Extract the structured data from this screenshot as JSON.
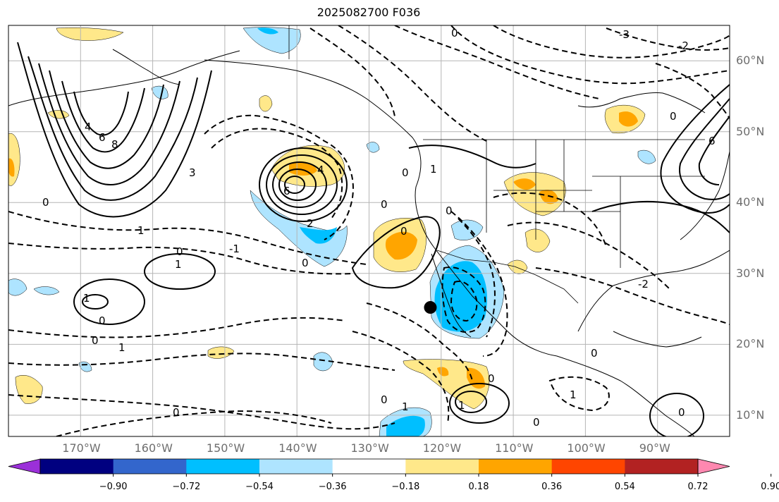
{
  "title": "2025082700 F036",
  "map": {
    "lon_range": [
      -180,
      -80
    ],
    "lat_range": [
      7,
      65
    ],
    "lon_ticks": [
      {
        "value": -170,
        "label": "170°W"
      },
      {
        "value": -160,
        "label": "160°W"
      },
      {
        "value": -150,
        "label": "150°W"
      },
      {
        "value": -140,
        "label": "140°W"
      },
      {
        "value": -130,
        "label": "130°W"
      },
      {
        "value": -120,
        "label": "120°W"
      },
      {
        "value": -110,
        "label": "110°W"
      },
      {
        "value": -100,
        "label": "100°W"
      },
      {
        "value": -90,
        "label": "90°W"
      }
    ],
    "lat_ticks": [
      {
        "value": 60,
        "label": "60°N"
      },
      {
        "value": 50,
        "label": "50°N"
      },
      {
        "value": 40,
        "label": "40°N"
      },
      {
        "value": 30,
        "label": "30°N"
      },
      {
        "value": 20,
        "label": "20°N"
      },
      {
        "value": 10,
        "label": "10°N"
      }
    ],
    "marker": {
      "lon": -121.5,
      "lat": 25.2
    },
    "contour_labels": [
      "0",
      "1",
      "2",
      "3",
      "4",
      "6",
      "8",
      "-1",
      "-2",
      "-3"
    ]
  },
  "colorbar": {
    "ticks": [
      "−0.90",
      "−0.72",
      "−0.54",
      "−0.36",
      "−0.18",
      "0.18",
      "0.36",
      "0.54",
      "0.72",
      "0.90"
    ],
    "colors": [
      "#9b30d9",
      "#000080",
      "#3366cc",
      "#00bfff",
      "#aee4ff",
      "#ffffff",
      "#ffe88a",
      "#ffa500",
      "#ff4500",
      "#b22222",
      "#ff88b0"
    ]
  }
}
